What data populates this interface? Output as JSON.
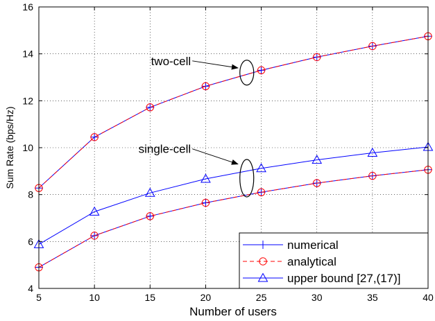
{
  "chart_data": {
    "type": "line",
    "title": "",
    "xlabel": "Number of users",
    "ylabel": "Sum Rate (bps/Hz)",
    "xlim": [
      5,
      40
    ],
    "ylim": [
      4,
      16
    ],
    "xticks": [
      5,
      10,
      15,
      20,
      25,
      30,
      35,
      40
    ],
    "yticks": [
      4,
      6,
      8,
      10,
      12,
      14,
      16
    ],
    "grid": true,
    "x": [
      5,
      10,
      15,
      20,
      25,
      30,
      35,
      40
    ],
    "series": [
      {
        "name": "numerical",
        "group": "two-cell",
        "color": "#0000ff",
        "marker": "plus",
        "dash": "solid",
        "values": [
          8.28,
          10.45,
          11.72,
          12.62,
          13.3,
          13.86,
          14.33,
          14.75
        ]
      },
      {
        "name": "analytical",
        "group": "two-cell",
        "color": "#ff0000",
        "marker": "circle",
        "dash": "dashed",
        "values": [
          8.28,
          10.45,
          11.72,
          12.62,
          13.3,
          13.86,
          14.33,
          14.75
        ]
      },
      {
        "name": "numerical",
        "group": "single-cell",
        "color": "#0000ff",
        "marker": "plus",
        "dash": "solid",
        "values": [
          4.9,
          6.25,
          7.08,
          7.65,
          8.1,
          8.49,
          8.8,
          9.06
        ]
      },
      {
        "name": "analytical",
        "group": "single-cell",
        "color": "#ff0000",
        "marker": "circle",
        "dash": "dashed",
        "values": [
          4.9,
          6.25,
          7.08,
          7.65,
          8.1,
          8.49,
          8.8,
          9.06
        ]
      },
      {
        "name": "upper bound [27,(17)]",
        "group": "single-cell",
        "color": "#0000ff",
        "marker": "triangle",
        "dash": "solid",
        "values": [
          5.88,
          7.27,
          8.07,
          8.67,
          9.12,
          9.48,
          9.78,
          10.03
        ]
      }
    ],
    "legend": {
      "placement": "bottom-right",
      "entries": [
        {
          "label": "numerical",
          "color": "#0000ff",
          "marker": "plus",
          "dash": "solid"
        },
        {
          "label": "analytical",
          "color": "#ff0000",
          "marker": "circle",
          "dash": "dashed"
        },
        {
          "label": "upper bound [27,(17)]",
          "color": "#0000ff",
          "marker": "triangle",
          "dash": "solid"
        }
      ]
    },
    "annotations": [
      {
        "text": "two-cell",
        "ellipse_x": 23.7,
        "ellipse_y": 13.2,
        "arrow_from": [
          18.8,
          13.7
        ],
        "arrow_to": [
          22.9,
          13.4
        ]
      },
      {
        "text": "single-cell",
        "ellipse_x": 23.7,
        "ellipse_y": 8.7,
        "arrow_from": [
          18.8,
          9.95
        ],
        "arrow_to": [
          22.9,
          9.3
        ]
      }
    ]
  }
}
